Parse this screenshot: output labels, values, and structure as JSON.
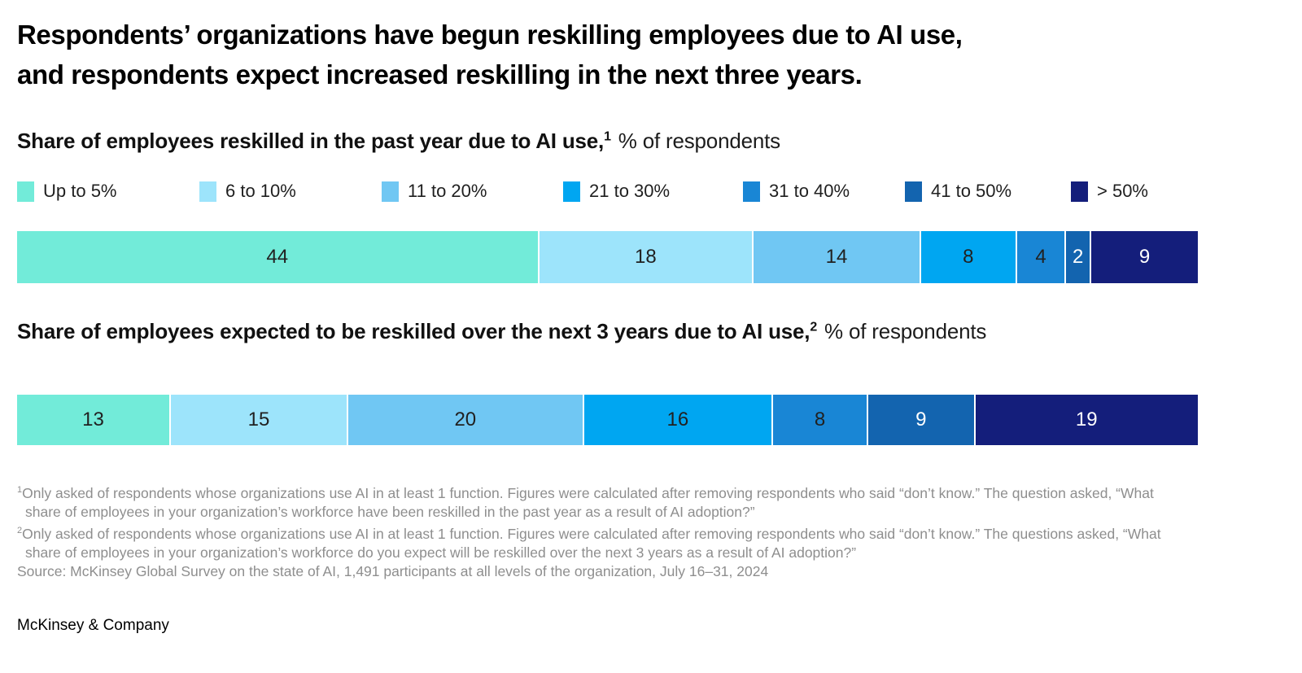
{
  "page": {
    "background": "#ffffff",
    "brand": "McKinsey & Company"
  },
  "title": {
    "line1": "Respondents’ organizations have begun reskilling employees due to AI use,",
    "line2": "and respondents expect increased reskilling in the next three years."
  },
  "colors": {
    "palette": [
      "#72EBD9",
      "#9DE4FB",
      "#70C7F3",
      "#00A6F1",
      "#1986D5",
      "#1364AF",
      "#141E7B"
    ],
    "segment_label_dark": "#212121",
    "segment_label_light": "#ffffff",
    "footnote_gray": "#8e8e8e",
    "title_black": "#000000"
  },
  "legend": {
    "items": [
      "Up to 5%",
      "6 to 10%",
      "11 to 20%",
      "21 to 30%",
      "31 to 40%",
      "41 to 50%",
      "> 50%"
    ]
  },
  "chart_data": [
    {
      "type": "bar",
      "subtype": "stacked-horizontal-100pct",
      "title": "Share of employees reskilled in the past year due to AI use,",
      "footnote_ref": "1",
      "unit_label": "% of respondents",
      "categories": [
        "Up to 5%",
        "6 to 10%",
        "11 to 20%",
        "21 to 30%",
        "31 to 40%",
        "41 to 50%",
        "> 50%"
      ],
      "values": [
        44,
        18,
        14,
        8,
        4,
        2,
        9
      ],
      "value_label_styles": [
        "dark",
        "dark",
        "dark",
        "dark",
        "dark",
        "light",
        "light"
      ],
      "legend_position": "top",
      "axes": "none",
      "grid": false
    },
    {
      "type": "bar",
      "subtype": "stacked-horizontal-100pct",
      "title": "Share of employees expected to be reskilled over the next 3 years due to AI use,",
      "footnote_ref": "2",
      "unit_label": "% of respondents",
      "categories": [
        "Up to 5%",
        "6 to 10%",
        "11 to 20%",
        "21 to 30%",
        "31 to 40%",
        "41 to 50%",
        "> 50%"
      ],
      "values": [
        13,
        15,
        20,
        16,
        8,
        9,
        19
      ],
      "value_label_styles": [
        "dark",
        "dark",
        "dark",
        "dark",
        "dark",
        "light",
        "light"
      ],
      "legend_position": "shared-top",
      "axes": "none",
      "grid": false
    }
  ],
  "footnotes": [
    {
      "sup": "1",
      "text": "Only asked of respondents whose organizations use AI in at least 1 function. Figures were calculated after removing respondents who said “don’t know.” The question asked, “What share of employees in your organization’s workforce have been reskilled in the past year as a result of AI adoption?”"
    },
    {
      "sup": "2",
      "text": "Only asked of respondents whose organizations use AI in at least 1 function. Figures were calculated after removing respondents who said “don’t know.” The questions asked, “What share of employees in your organization’s workforce do you expect will be reskilled over the next 3 years as a result of AI adoption?”"
    }
  ],
  "source": "Source: McKinsey Global Survey on the state of AI, 1,491 participants at all levels of the organization, July 16–31, 2024"
}
